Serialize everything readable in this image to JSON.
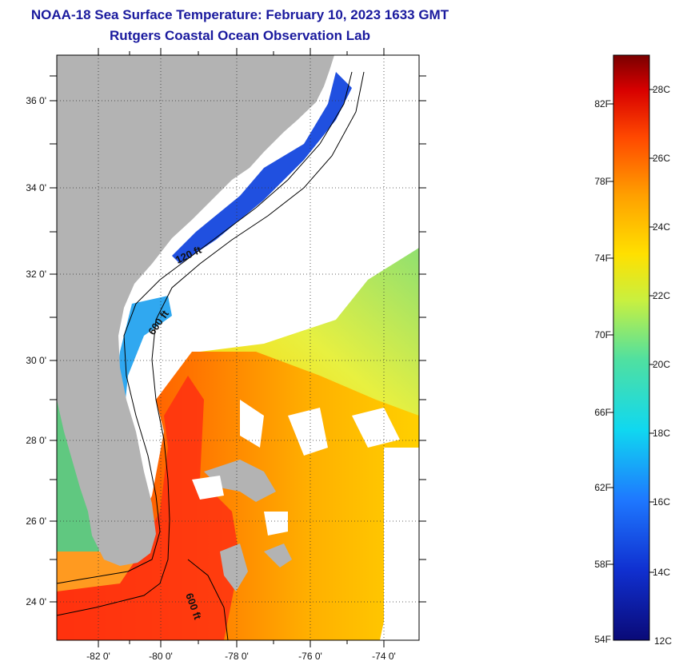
{
  "title": "NOAA-18 Sea Surface Temperature:  February 10, 2023 1633 GMT",
  "subtitle": "Rutgers Coastal Ocean Observation Lab",
  "map": {
    "lon_range": [
      -83,
      -73
    ],
    "lat_range": [
      23,
      37
    ],
    "lat_ticks": [
      "24 0'",
      "26 0'",
      "28 0'",
      "30 0'",
      "32 0'",
      "34 0'",
      "36 0'"
    ],
    "lon_ticks": [
      "-82 0'",
      "-80 0'",
      "-78 0'",
      "-76 0'",
      "-74 0'"
    ],
    "contour_labels": [
      "120 ft",
      "600 ft",
      "600 ft"
    ],
    "land_color": "#b3b3b3",
    "cloud_color": "#ffffff"
  },
  "colorbar": {
    "fahrenheit_labels": [
      "82F",
      "78F",
      "74F",
      "70F",
      "66F",
      "62F",
      "58F",
      "54F"
    ],
    "celsius_labels": [
      "28C",
      "26C",
      "24C",
      "22C",
      "20C",
      "18C",
      "16C",
      "14C",
      "12C"
    ],
    "range_c": [
      12,
      29
    ]
  }
}
